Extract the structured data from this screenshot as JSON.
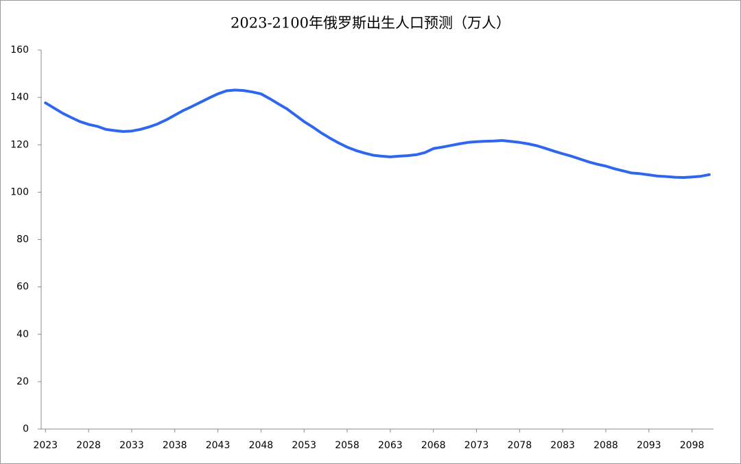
{
  "chart_data": {
    "type": "line",
    "title": "2023-2100年俄罗斯出生人口预测（万人）",
    "x": [
      2023,
      2024,
      2025,
      2026,
      2027,
      2028,
      2029,
      2030,
      2031,
      2032,
      2033,
      2034,
      2035,
      2036,
      2037,
      2038,
      2039,
      2040,
      2041,
      2042,
      2043,
      2044,
      2045,
      2046,
      2047,
      2048,
      2049,
      2050,
      2051,
      2052,
      2053,
      2054,
      2055,
      2056,
      2057,
      2058,
      2059,
      2060,
      2061,
      2062,
      2063,
      2064,
      2065,
      2066,
      2067,
      2068,
      2069,
      2070,
      2071,
      2072,
      2073,
      2074,
      2075,
      2076,
      2077,
      2078,
      2079,
      2080,
      2081,
      2082,
      2083,
      2084,
      2085,
      2086,
      2087,
      2088,
      2089,
      2090,
      2091,
      2092,
      2093,
      2094,
      2095,
      2096,
      2097,
      2098,
      2099,
      2100
    ],
    "values": [
      137.7,
      135.5,
      133.3,
      131.5,
      129.8,
      128.6,
      127.8,
      126.5,
      126.0,
      125.6,
      125.8,
      126.5,
      127.5,
      128.8,
      130.5,
      132.5,
      134.5,
      136.2,
      138.0,
      139.8,
      141.5,
      142.8,
      143.1,
      142.9,
      142.3,
      141.5,
      139.5,
      137.3,
      135.2,
      132.5,
      129.8,
      127.5,
      125.0,
      122.8,
      120.8,
      119.0,
      117.6,
      116.5,
      115.6,
      115.2,
      114.9,
      115.2,
      115.4,
      115.8,
      116.7,
      118.4,
      119.0,
      119.7,
      120.4,
      121.0,
      121.3,
      121.5,
      121.6,
      121.8,
      121.4,
      121.0,
      120.4,
      119.6,
      118.5,
      117.3,
      116.2,
      115.2,
      114.0,
      112.8,
      111.8,
      111.0,
      109.9,
      109.0,
      108.1,
      107.8,
      107.3,
      106.8,
      106.6,
      106.3,
      106.2,
      106.4,
      106.7,
      107.4
    ],
    "color": "#2f66ee",
    "xlim": [
      2022.5,
      2100.5
    ],
    "xticks": [
      2023,
      2028,
      2033,
      2038,
      2043,
      2048,
      2053,
      2058,
      2063,
      2068,
      2073,
      2078,
      2083,
      2088,
      2093,
      2098
    ],
    "ylim": [
      0,
      160
    ],
    "yticks": [
      0,
      20,
      40,
      60,
      80,
      100,
      120,
      140,
      160
    ],
    "grid": false
  }
}
